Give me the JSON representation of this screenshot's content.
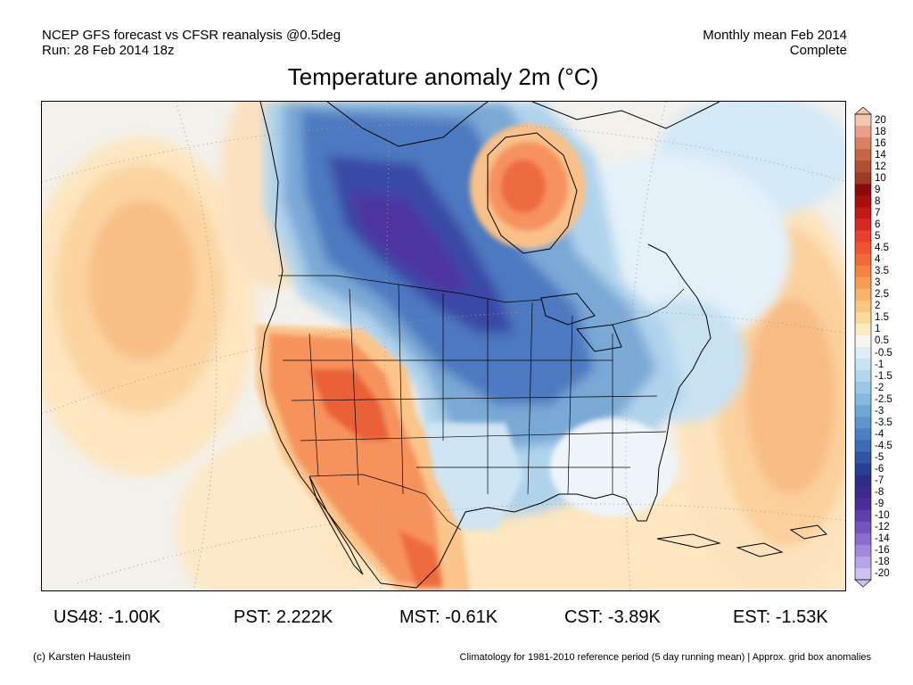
{
  "header": {
    "line1_left": "NCEP GFS forecast vs CFSR reanalysis @0.5deg",
    "line2_left": "Run: 28 Feb 2014 18z",
    "line1_right": "Monthly mean Feb 2014",
    "line2_right": "Complete"
  },
  "title": "Temperature anomaly 2m (°C)",
  "colorbar": {
    "labels": [
      "20",
      "18",
      "16",
      "14",
      "12",
      "10",
      "9",
      "8",
      "7",
      "6",
      "5",
      "4.5",
      "4",
      "3.5",
      "3",
      "2.5",
      "2",
      "1.5",
      "1",
      "0.5",
      "-0.5",
      "-1",
      "-1.5",
      "-2",
      "-2.5",
      "-3",
      "-3.5",
      "-4",
      "-4.5",
      "-5",
      "-6",
      "-7",
      "-8",
      "-9",
      "-10",
      "-12",
      "-14",
      "-16",
      "-18",
      "-20"
    ],
    "colors": [
      "#f3c8b0",
      "#e8a088",
      "#d88060",
      "#c76545",
      "#b25035",
      "#9e3a25",
      "#8c0a0a",
      "#a81010",
      "#c41818",
      "#d82828",
      "#e84030",
      "#ee5533",
      "#f26a3a",
      "#f58345",
      "#f79c55",
      "#f8b26a",
      "#fac780",
      "#fbd99a",
      "#fdebc0",
      "#f7f5ee",
      "#ddeef8",
      "#c8e3f3",
      "#b2d6ed",
      "#9cc8e6",
      "#86b9de",
      "#70a8d5",
      "#5d95cc",
      "#4d80c2",
      "#3e6bb5",
      "#3254a6",
      "#2a3f96",
      "#2e2d86",
      "#3c2a8a",
      "#4c2d9a",
      "#5f3eae",
      "#7455c0",
      "#8a6ecf",
      "#a088dc",
      "#b8a4e8",
      "#cfc0f2"
    ]
  },
  "stats": [
    {
      "label": "US48:",
      "value": "-1.00K"
    },
    {
      "label": "PST:",
      "value": "2.222K"
    },
    {
      "label": "MST:",
      "value": "-0.61K"
    },
    {
      "label": "CST:",
      "value": "-3.89K"
    },
    {
      "label": "EST:",
      "value": "-1.53K"
    }
  ],
  "footer": {
    "left": "(c) Karsten Haustein",
    "right": "Climatology for 1981-2010 reference period (5 day running mean) | Approx. grid box anomalies"
  }
}
